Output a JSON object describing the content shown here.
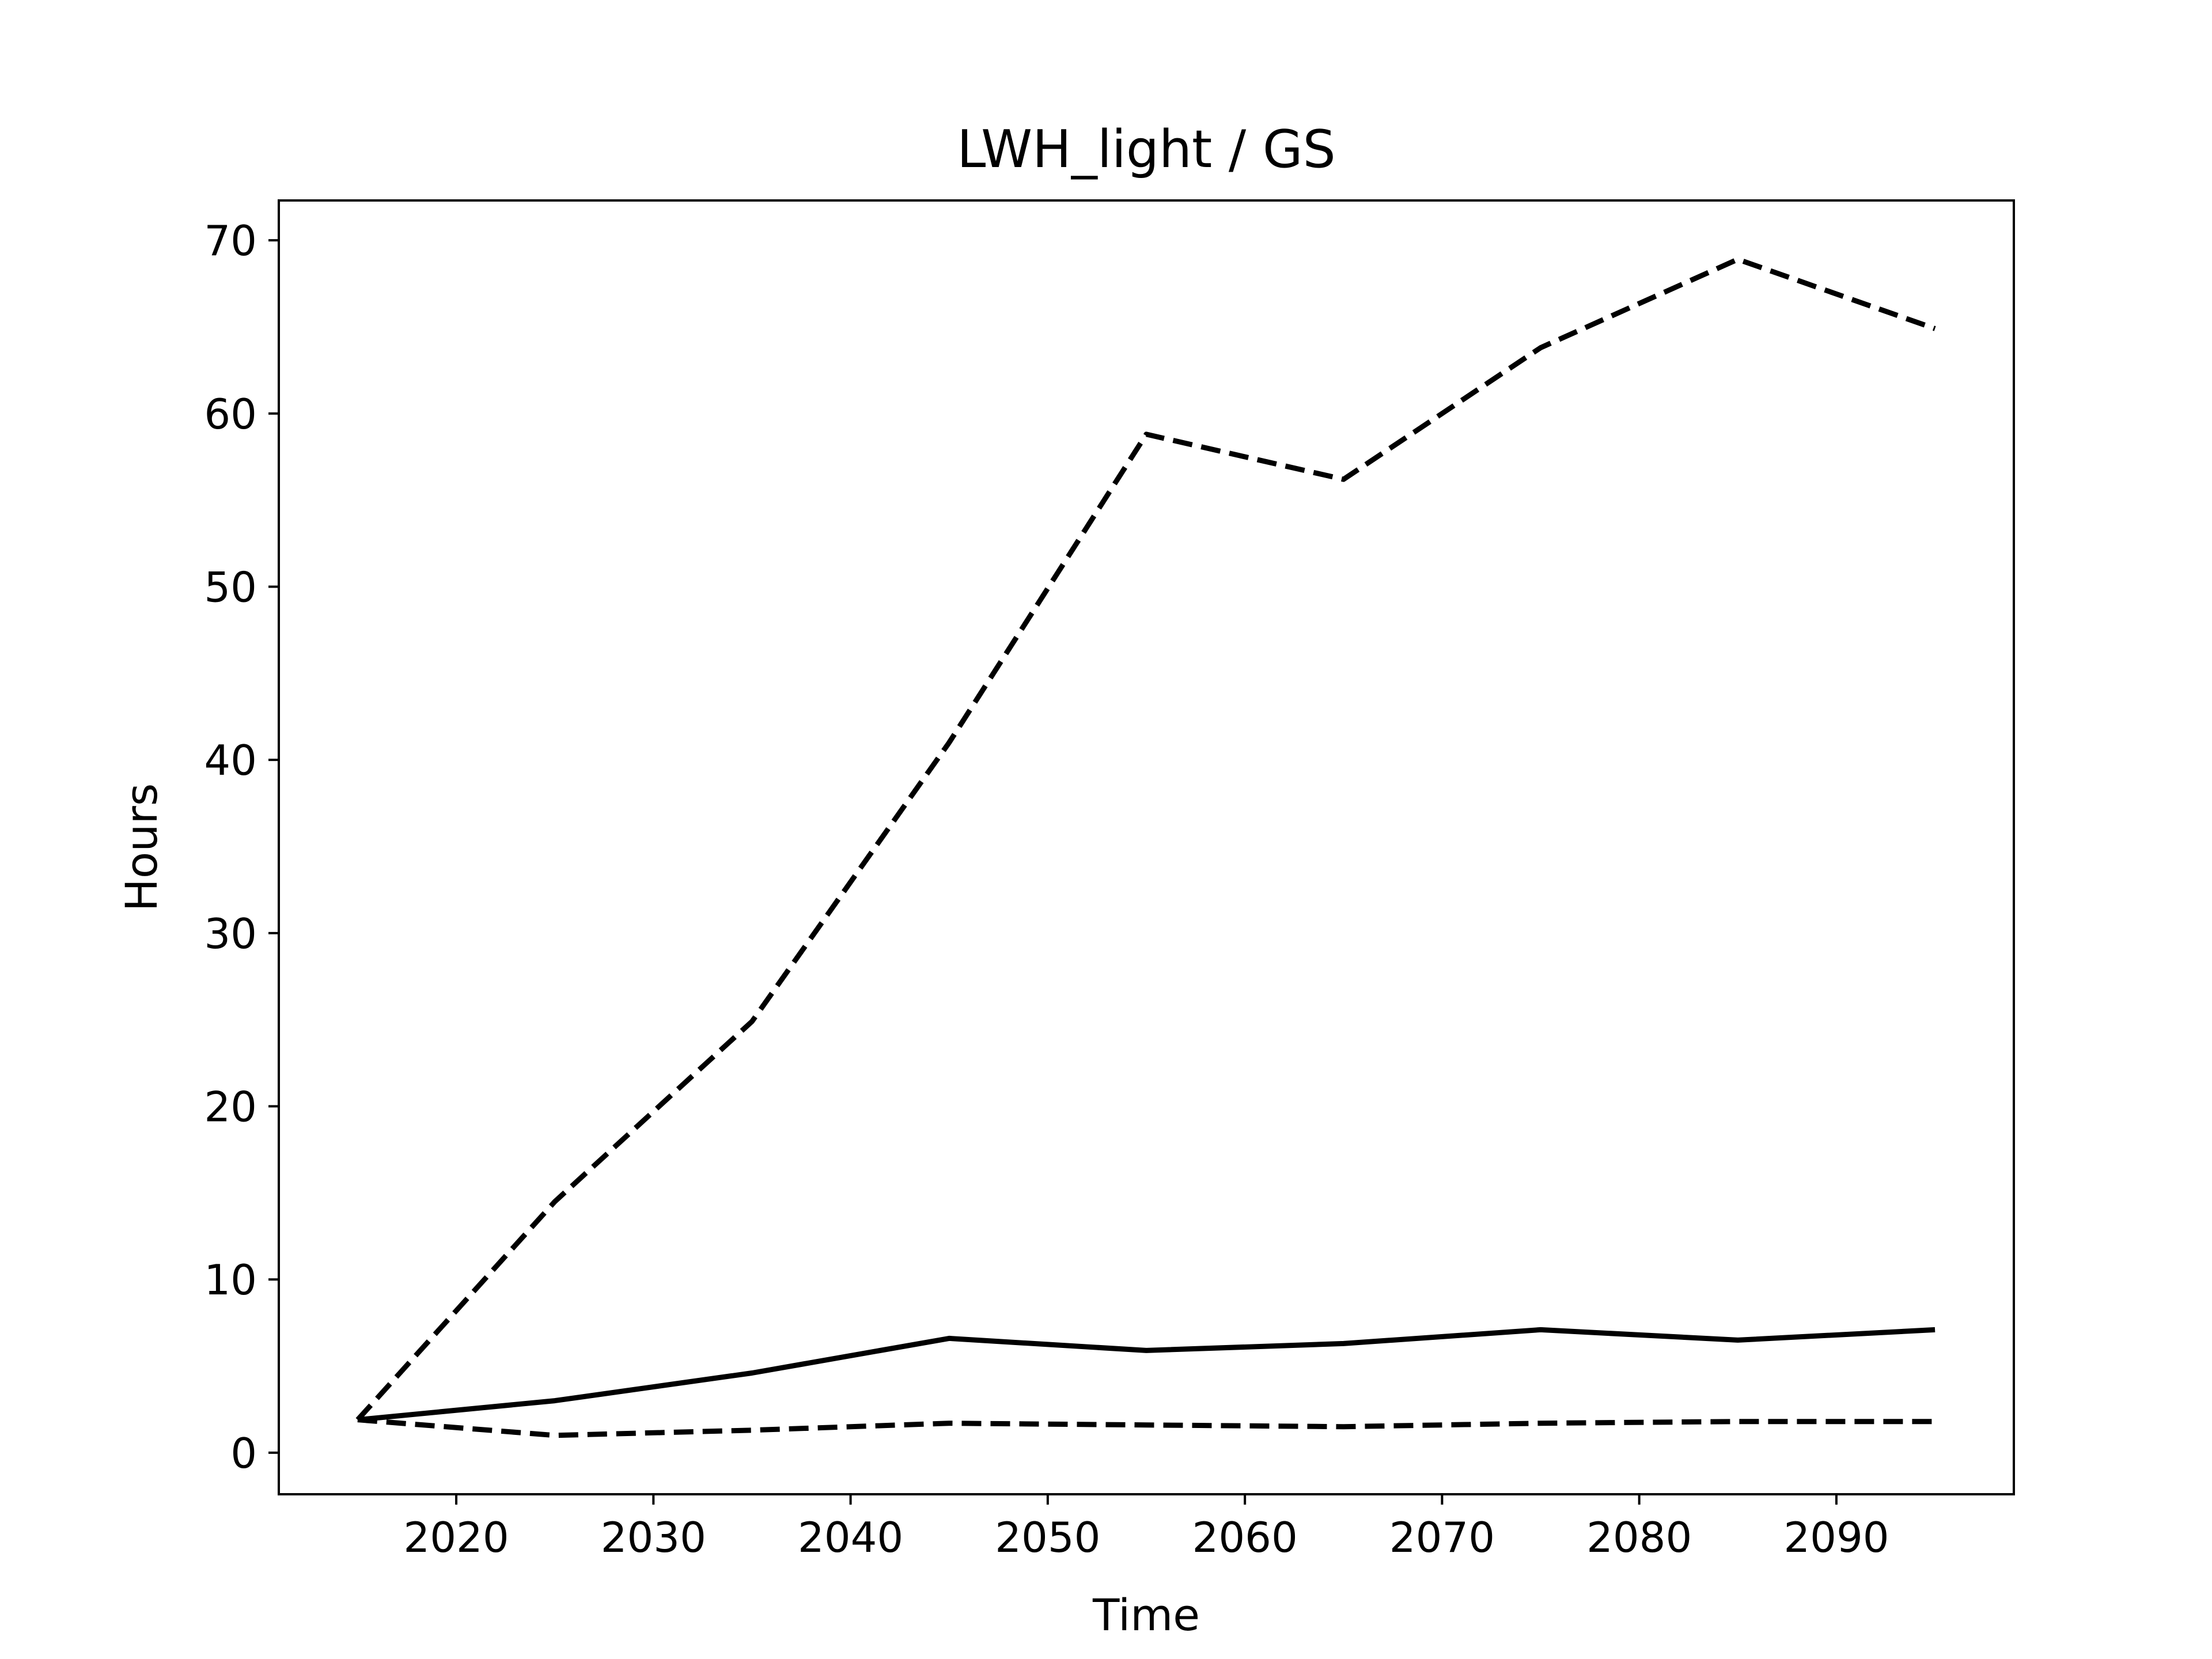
{
  "chart_data": {
    "type": "line",
    "title": "LWH_light / GS",
    "xlabel": "Time",
    "ylabel": "Hours",
    "xlim": [
      2011,
      2099
    ],
    "ylim": [
      -2.4,
      72.3
    ],
    "xticks": [
      2020,
      2030,
      2040,
      2050,
      2060,
      2070,
      2080,
      2090
    ],
    "yticks": [
      0,
      10,
      20,
      30,
      40,
      50,
      60,
      70
    ],
    "grid": false,
    "legend": "none",
    "x": [
      2015,
      2025,
      2035,
      2045,
      2055,
      2065,
      2075,
      2085,
      2095
    ],
    "series": [
      {
        "style": "solid",
        "color": "#000000",
        "values": [
          1.9,
          3.0,
          4.6,
          6.6,
          5.9,
          6.3,
          7.1,
          6.5,
          7.1
        ]
      },
      {
        "style": "dashed",
        "color": "#000000",
        "values": [
          1.9,
          14.5,
          24.9,
          41.0,
          58.8,
          56.2,
          63.8,
          68.9,
          64.9
        ]
      },
      {
        "style": "dashed",
        "color": "#000000",
        "values": [
          1.9,
          1.0,
          1.3,
          1.7,
          1.6,
          1.5,
          1.7,
          1.8,
          1.8
        ]
      }
    ]
  }
}
